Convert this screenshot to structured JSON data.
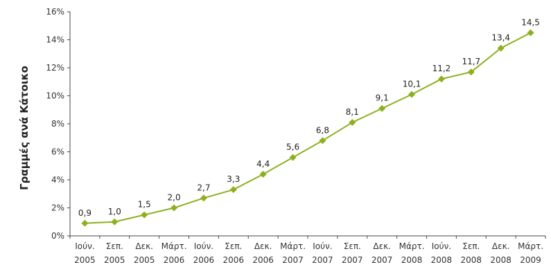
{
  "chart_data": {
    "type": "line",
    "title": "",
    "ylabel": "Γραμμές ανά Κάτοικο",
    "xlabel": "",
    "ylim": [
      0,
      16
    ],
    "y_ticks": [
      "0%",
      "2%",
      "4%",
      "6%",
      "8%",
      "10%",
      "12%",
      "14%",
      "16%"
    ],
    "grid": false,
    "color": "#8DB01E",
    "categories": [
      [
        "Ιούν.",
        "2005"
      ],
      [
        "Σεπ.",
        "2005"
      ],
      [
        "Δεκ.",
        "2005"
      ],
      [
        "Μάρτ.",
        "2006"
      ],
      [
        "Ιούν.",
        "2006"
      ],
      [
        "Σεπ.",
        "2006"
      ],
      [
        "Δεκ.",
        "2006"
      ],
      [
        "Μάρτ.",
        "2007"
      ],
      [
        "Ιούν.",
        "2007"
      ],
      [
        "Σεπ.",
        "2007"
      ],
      [
        "Δεκ.",
        "2007"
      ],
      [
        "Μάρτ.",
        "2008"
      ],
      [
        "Ιούν.",
        "2008"
      ],
      [
        "Σεπ.",
        "2008"
      ],
      [
        "Δεκ.",
        "2008"
      ],
      [
        "Μάρτ.",
        "2009"
      ]
    ],
    "values": [
      0.9,
      1.0,
      1.5,
      2.0,
      2.7,
      3.3,
      4.4,
      5.6,
      6.8,
      8.1,
      9.1,
      10.1,
      11.2,
      11.7,
      13.4,
      14.5
    ],
    "value_labels": [
      "0,9",
      "1,0",
      "1,5",
      "2,0",
      "2,7",
      "3,3",
      "4,4",
      "5,6",
      "6,8",
      "8,1",
      "9,1",
      "10,1",
      "11,2",
      "11,7",
      "13,4",
      "14,5"
    ]
  }
}
